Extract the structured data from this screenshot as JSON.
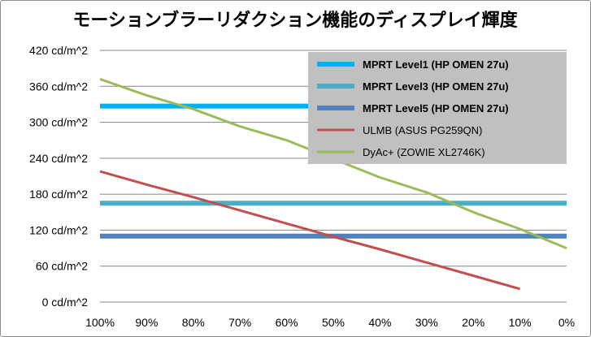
{
  "chart_data": {
    "type": "line",
    "title": "モーションブラーリダクション機能のディスプレイ輝度",
    "xlabel": "",
    "ylabel": "",
    "x_ticks": [
      "100%",
      "90%",
      "80%",
      "70%",
      "60%",
      "50%",
      "40%",
      "30%",
      "20%",
      "10%",
      "0%"
    ],
    "x_values": [
      100,
      90,
      80,
      70,
      60,
      50,
      40,
      30,
      20,
      10,
      0
    ],
    "x_reversed": true,
    "y_ticks": [
      "0 cd/m^2",
      "60 cd/m^2",
      "120 cd/m^2",
      "180 cd/m^2",
      "240 cd/m^2",
      "300 cd/m^2",
      "360 cd/m^2",
      "420 cd/m^2"
    ],
    "ylim": [
      0,
      420
    ],
    "grid": "horizontal",
    "legend_position": "top-right",
    "series": [
      {
        "name": "MPRT Level1 (HP OMEN 27u)",
        "color": "#00b0f0",
        "bold": true,
        "width": 6,
        "x": [
          100,
          0
        ],
        "y": [
          327,
          327
        ]
      },
      {
        "name": "MPRT Level3 (HP OMEN 27u)",
        "color": "#4bacc6",
        "bold": true,
        "width": 6,
        "x": [
          100,
          0
        ],
        "y": [
          165,
          165
        ]
      },
      {
        "name": "MPRT Level5 (HP OMEN 27u)",
        "color": "#4f81bd",
        "bold": true,
        "width": 6,
        "x": [
          100,
          0
        ],
        "y": [
          110,
          110
        ]
      },
      {
        "name": "ULMB (ASUS PG259QN)",
        "color": "#c0504d",
        "bold": false,
        "width": 3,
        "x": [
          100,
          90,
          80,
          70,
          60,
          50,
          40,
          30,
          20,
          10
        ],
        "y": [
          218,
          196,
          175,
          153,
          131,
          109,
          88,
          66,
          44,
          22
        ]
      },
      {
        "name": "DyAc+ (ZOWIE XL2746K)",
        "color": "#9bbb59",
        "bold": false,
        "width": 3,
        "x": [
          100,
          90,
          80,
          70,
          60,
          50,
          40,
          30,
          20,
          10,
          0
        ],
        "y": [
          372,
          345,
          322,
          293,
          270,
          239,
          208,
          183,
          150,
          122,
          90
        ]
      }
    ]
  }
}
